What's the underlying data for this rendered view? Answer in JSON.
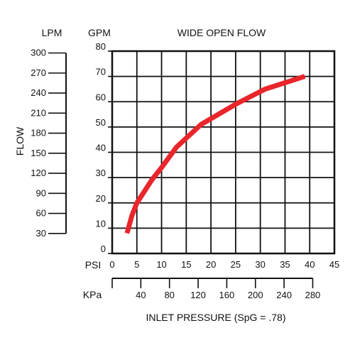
{
  "chart_data": {
    "type": "line",
    "title": "WIDE OPEN FLOW",
    "xlabel": "INLET PRESSURE (SpG = .78)",
    "ylabel": "FLOW",
    "y_left_unit": "LPM",
    "y_right_unit": "GPM",
    "x_top_unit": "PSI",
    "x_bottom_unit": "KPa",
    "xlim": [
      0,
      45
    ],
    "ylim": [
      0,
      80
    ],
    "grid": true,
    "legend": "none",
    "x_ticks_psi": [
      "0",
      "5",
      "10",
      "15",
      "20",
      "25",
      "30",
      "35",
      "40",
      "45"
    ],
    "x_ticks_kpa": [
      "40",
      "80",
      "120",
      "160",
      "200",
      "240",
      "280"
    ],
    "y_ticks_gpm": [
      "0",
      "10",
      "20",
      "30",
      "40",
      "50",
      "60",
      "70",
      "80"
    ],
    "y_ticks_lpm": [
      "30",
      "60",
      "90",
      "120",
      "150",
      "180",
      "210",
      "240",
      "270",
      "300"
    ],
    "series": [
      {
        "color": "#e8262b",
        "x": [
          3,
          4,
          5,
          8,
          10,
          13,
          18,
          25,
          31,
          39
        ],
        "y": [
          8,
          15,
          20,
          29,
          34,
          42,
          51,
          59,
          65,
          70
        ]
      }
    ]
  }
}
